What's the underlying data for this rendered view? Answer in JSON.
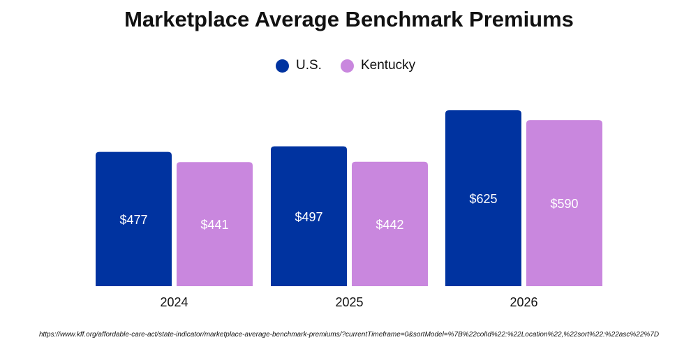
{
  "colors": {
    "us": "#0033a0",
    "kentucky": "#c987de",
    "baseline": "#bfbfbf",
    "bar_label": "#ffffff"
  },
  "chart_data": {
    "type": "bar",
    "title": "Marketplace Average Benchmark Premiums",
    "categories": [
      "2024",
      "2025",
      "2026"
    ],
    "series": [
      {
        "name": "U.S.",
        "values": [
          477,
          497,
          625
        ],
        "labels": [
          "$477",
          "$497",
          "$625"
        ]
      },
      {
        "name": "Kentucky",
        "values": [
          441,
          442,
          590
        ],
        "labels": [
          "$441",
          "$442",
          "$590"
        ]
      }
    ],
    "legend": {
      "placement": "top-center"
    },
    "xlabel": "",
    "ylabel": "",
    "ylim": [
      0,
      700
    ],
    "grid": false,
    "source": "https://www.kff.org/affordable-care-act/state-indicator/marketplace-average-benchmark-premiums/?currentTimeframe=0&sortModel=%7B%22colId%22:%22Location%22,%22sort%22:%22asc%22%7D"
  }
}
